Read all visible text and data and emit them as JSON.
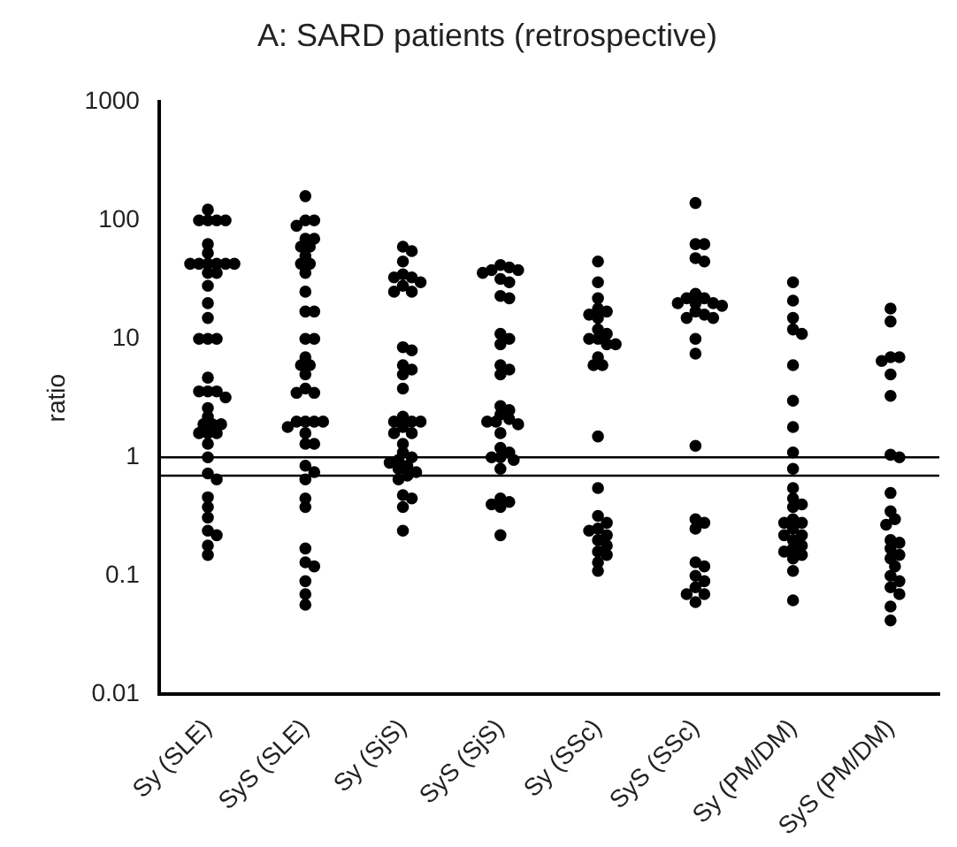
{
  "chart_data": {
    "type": "scatter",
    "title": "A: SARD patients (retrospective)",
    "ylabel": "ratio",
    "categories": [
      "Sy (SLE)",
      "SyS (SLE)",
      "Sy (SjS)",
      "SyS (SjS)",
      "Sy (SSc)",
      "SyS (SSc)",
      "Sy (PM/DM)",
      "SyS (PM/DM)"
    ],
    "log": "y",
    "ylim": [
      0.01,
      1000
    ],
    "yticks": [
      0.01,
      0.1,
      1,
      10,
      100,
      1000
    ],
    "grid": false,
    "legend": false,
    "marker": "circle",
    "ref_lines": [
      {
        "axis": "y",
        "value": 1,
        "color": "#000000"
      },
      {
        "axis": "y",
        "value": 0.7,
        "color": "#000000"
      }
    ],
    "series": [
      {
        "color": "#000000",
        "x": [
          "Sy (SLE)",
          "Sy (SLE)",
          "Sy (SLE)",
          "Sy (SLE)",
          "Sy (SLE)",
          "Sy (SLE)",
          "Sy (SLE)",
          "Sy (SLE)",
          "Sy (SLE)",
          "Sy (SLE)",
          "Sy (SLE)",
          "Sy (SLE)",
          "Sy (SLE)",
          "Sy (SLE)",
          "Sy (SLE)",
          "Sy (SLE)",
          "Sy (SLE)",
          "Sy (SLE)",
          "Sy (SLE)",
          "Sy (SLE)",
          "Sy (SLE)",
          "Sy (SLE)",
          "Sy (SLE)",
          "Sy (SLE)",
          "Sy (SLE)",
          "Sy (SLE)",
          "Sy (SLE)",
          "Sy (SLE)",
          "Sy (SLE)",
          "Sy (SLE)",
          "Sy (SLE)",
          "Sy (SLE)",
          "Sy (SLE)",
          "Sy (SLE)",
          "Sy (SLE)",
          "Sy (SLE)",
          "Sy (SLE)",
          "Sy (SLE)",
          "Sy (SLE)",
          "Sy (SLE)",
          "Sy (SLE)",
          "Sy (SLE)",
          "Sy (SLE)",
          "Sy (SLE)",
          "Sy (SLE)"
        ],
        "values": [
          123,
          100,
          100,
          100,
          100,
          63,
          53,
          43,
          43,
          43,
          43,
          43,
          43,
          36,
          36,
          28,
          20,
          15,
          10,
          10,
          10,
          4.7,
          3.6,
          3.6,
          3.6,
          3.2,
          2.6,
          2.2,
          1.9,
          1.9,
          1.9,
          1.6,
          1.6,
          1.6,
          1.3,
          1.0,
          0.73,
          0.65,
          0.46,
          0.38,
          0.31,
          0.24,
          0.22,
          0.18,
          0.15
        ]
      },
      {
        "color": "#000000",
        "x": [
          "SyS (SLE)",
          "SyS (SLE)",
          "SyS (SLE)",
          "SyS (SLE)",
          "SyS (SLE)",
          "SyS (SLE)",
          "SyS (SLE)",
          "SyS (SLE)",
          "SyS (SLE)",
          "SyS (SLE)",
          "SyS (SLE)",
          "SyS (SLE)",
          "SyS (SLE)",
          "SyS (SLE)",
          "SyS (SLE)",
          "SyS (SLE)",
          "SyS (SLE)",
          "SyS (SLE)",
          "SyS (SLE)",
          "SyS (SLE)",
          "SyS (SLE)",
          "SyS (SLE)",
          "SyS (SLE)",
          "SyS (SLE)",
          "SyS (SLE)",
          "SyS (SLE)",
          "SyS (SLE)",
          "SyS (SLE)",
          "SyS (SLE)",
          "SyS (SLE)",
          "SyS (SLE)",
          "SyS (SLE)",
          "SyS (SLE)",
          "SyS (SLE)",
          "SyS (SLE)",
          "SyS (SLE)",
          "SyS (SLE)",
          "SyS (SLE)",
          "SyS (SLE)",
          "SyS (SLE)",
          "SyS (SLE)",
          "SyS (SLE)",
          "SyS (SLE)"
        ],
        "values": [
          160,
          100,
          100,
          90,
          70,
          70,
          60,
          60,
          50,
          43,
          43,
          36,
          25,
          17,
          17,
          10,
          10,
          7,
          6,
          6,
          5,
          3.8,
          3.5,
          3.5,
          2,
          2,
          2,
          2,
          1.8,
          1.6,
          1.3,
          1.3,
          0.85,
          0.75,
          0.65,
          0.45,
          0.38,
          0.17,
          0.13,
          0.12,
          0.09,
          0.07,
          0.057
        ]
      },
      {
        "color": "#000000",
        "x": [
          "Sy (SjS)",
          "Sy (SjS)",
          "Sy (SjS)",
          "Sy (SjS)",
          "Sy (SjS)",
          "Sy (SjS)",
          "Sy (SjS)",
          "Sy (SjS)",
          "Sy (SjS)",
          "Sy (SjS)",
          "Sy (SjS)",
          "Sy (SjS)",
          "Sy (SjS)",
          "Sy (SjS)",
          "Sy (SjS)",
          "Sy (SjS)",
          "Sy (SjS)",
          "Sy (SjS)",
          "Sy (SjS)",
          "Sy (SjS)",
          "Sy (SjS)",
          "Sy (SjS)",
          "Sy (SjS)",
          "Sy (SjS)",
          "Sy (SjS)",
          "Sy (SjS)",
          "Sy (SjS)",
          "Sy (SjS)",
          "Sy (SjS)",
          "Sy (SjS)",
          "Sy (SjS)",
          "Sy (SjS)",
          "Sy (SjS)",
          "Sy (SjS)",
          "Sy (SjS)",
          "Sy (SjS)",
          "Sy (SjS)"
        ],
        "values": [
          60,
          55,
          45,
          35,
          33,
          33,
          30,
          28,
          25,
          25,
          8.5,
          8,
          6,
          5.5,
          5,
          3.8,
          2.2,
          2,
          2,
          2,
          1.8,
          1.6,
          1.6,
          1.3,
          1.1,
          1,
          0.95,
          0.9,
          0.85,
          0.8,
          0.75,
          0.7,
          0.65,
          0.48,
          0.45,
          0.38,
          0.24
        ]
      },
      {
        "color": "#000000",
        "x": [
          "SyS (SjS)",
          "SyS (SjS)",
          "SyS (SjS)",
          "SyS (SjS)",
          "SyS (SjS)",
          "SyS (SjS)",
          "SyS (SjS)",
          "SyS (SjS)",
          "SyS (SjS)",
          "SyS (SjS)",
          "SyS (SjS)",
          "SyS (SjS)",
          "SyS (SjS)",
          "SyS (SjS)",
          "SyS (SjS)",
          "SyS (SjS)",
          "SyS (SjS)",
          "SyS (SjS)",
          "SyS (SjS)",
          "SyS (SjS)",
          "SyS (SjS)",
          "SyS (SjS)",
          "SyS (SjS)",
          "SyS (SjS)",
          "SyS (SjS)",
          "SyS (SjS)",
          "SyS (SjS)",
          "SyS (SjS)",
          "SyS (SjS)",
          "SyS (SjS)",
          "SyS (SjS)",
          "SyS (SjS)",
          "SyS (SjS)",
          "SyS (SjS)"
        ],
        "values": [
          42,
          40,
          38,
          38,
          36,
          32,
          30,
          23,
          22,
          11,
          10,
          9,
          6,
          5.5,
          5,
          2.7,
          2.5,
          2.3,
          2.1,
          2,
          2,
          1.9,
          1.6,
          1.2,
          1.1,
          1,
          1,
          0.95,
          0.8,
          0.45,
          0.42,
          0.4,
          0.38,
          0.22
        ]
      },
      {
        "color": "#000000",
        "x": [
          "Sy (SSc)",
          "Sy (SSc)",
          "Sy (SSc)",
          "Sy (SSc)",
          "Sy (SSc)",
          "Sy (SSc)",
          "Sy (SSc)",
          "Sy (SSc)",
          "Sy (SSc)",
          "Sy (SSc)",
          "Sy (SSc)",
          "Sy (SSc)",
          "Sy (SSc)",
          "Sy (SSc)",
          "Sy (SSc)",
          "Sy (SSc)",
          "Sy (SSc)",
          "Sy (SSc)",
          "Sy (SSc)",
          "Sy (SSc)",
          "Sy (SSc)",
          "Sy (SSc)",
          "Sy (SSc)",
          "Sy (SSc)",
          "Sy (SSc)",
          "Sy (SSc)",
          "Sy (SSc)",
          "Sy (SSc)",
          "Sy (SSc)"
        ],
        "values": [
          45,
          30,
          22,
          18,
          17,
          16,
          15,
          12,
          11,
          10,
          10,
          9,
          9,
          7,
          6,
          6,
          1.5,
          0.55,
          0.32,
          0.28,
          0.25,
          0.24,
          0.22,
          0.2,
          0.18,
          0.16,
          0.15,
          0.13,
          0.11
        ]
      },
      {
        "color": "#000000",
        "x": [
          "SyS (SSc)",
          "SyS (SSc)",
          "SyS (SSc)",
          "SyS (SSc)",
          "SyS (SSc)",
          "SyS (SSc)",
          "SyS (SSc)",
          "SyS (SSc)",
          "SyS (SSc)",
          "SyS (SSc)",
          "SyS (SSc)",
          "SyS (SSc)",
          "SyS (SSc)",
          "SyS (SSc)",
          "SyS (SSc)",
          "SyS (SSc)",
          "SyS (SSc)",
          "SyS (SSc)",
          "SyS (SSc)",
          "SyS (SSc)",
          "SyS (SSc)",
          "SyS (SSc)",
          "SyS (SSc)",
          "SyS (SSc)",
          "SyS (SSc)",
          "SyS (SSc)",
          "SyS (SSc)",
          "SyS (SSc)",
          "SyS (SSc)",
          "SyS (SSc)"
        ],
        "values": [
          140,
          63,
          63,
          48,
          45,
          24,
          22,
          22,
          20,
          20,
          20,
          19,
          17,
          16,
          15,
          15,
          10,
          7.5,
          1.25,
          0.3,
          0.28,
          0.25,
          0.13,
          0.12,
          0.1,
          0.09,
          0.08,
          0.07,
          0.07,
          0.06
        ]
      },
      {
        "color": "#000000",
        "x": [
          "Sy (PM/DM)",
          "Sy (PM/DM)",
          "Sy (PM/DM)",
          "Sy (PM/DM)",
          "Sy (PM/DM)",
          "Sy (PM/DM)",
          "Sy (PM/DM)",
          "Sy (PM/DM)",
          "Sy (PM/DM)",
          "Sy (PM/DM)",
          "Sy (PM/DM)",
          "Sy (PM/DM)",
          "Sy (PM/DM)",
          "Sy (PM/DM)",
          "Sy (PM/DM)",
          "Sy (PM/DM)",
          "Sy (PM/DM)",
          "Sy (PM/DM)",
          "Sy (PM/DM)",
          "Sy (PM/DM)",
          "Sy (PM/DM)",
          "Sy (PM/DM)",
          "Sy (PM/DM)",
          "Sy (PM/DM)",
          "Sy (PM/DM)",
          "Sy (PM/DM)",
          "Sy (PM/DM)",
          "Sy (PM/DM)"
        ],
        "values": [
          30,
          21,
          15,
          12,
          11,
          6,
          3,
          1.8,
          1.1,
          0.8,
          0.55,
          0.45,
          0.4,
          0.38,
          0.3,
          0.28,
          0.28,
          0.25,
          0.22,
          0.22,
          0.2,
          0.18,
          0.17,
          0.16,
          0.15,
          0.14,
          0.11,
          0.062
        ]
      },
      {
        "color": "#000000",
        "x": [
          "SyS (PM/DM)",
          "SyS (PM/DM)",
          "SyS (PM/DM)",
          "SyS (PM/DM)",
          "SyS (PM/DM)",
          "SyS (PM/DM)",
          "SyS (PM/DM)",
          "SyS (PM/DM)",
          "SyS (PM/DM)",
          "SyS (PM/DM)",
          "SyS (PM/DM)",
          "SyS (PM/DM)",
          "SyS (PM/DM)",
          "SyS (PM/DM)",
          "SyS (PM/DM)",
          "SyS (PM/DM)",
          "SyS (PM/DM)",
          "SyS (PM/DM)",
          "SyS (PM/DM)",
          "SyS (PM/DM)",
          "SyS (PM/DM)",
          "SyS (PM/DM)",
          "SyS (PM/DM)",
          "SyS (PM/DM)",
          "SyS (PM/DM)"
        ],
        "values": [
          18,
          14,
          7,
          7,
          6.5,
          5,
          3.3,
          1.05,
          1,
          0.5,
          0.35,
          0.3,
          0.27,
          0.2,
          0.19,
          0.17,
          0.15,
          0.14,
          0.12,
          0.1,
          0.09,
          0.08,
          0.07,
          0.055,
          0.042
        ]
      }
    ]
  }
}
